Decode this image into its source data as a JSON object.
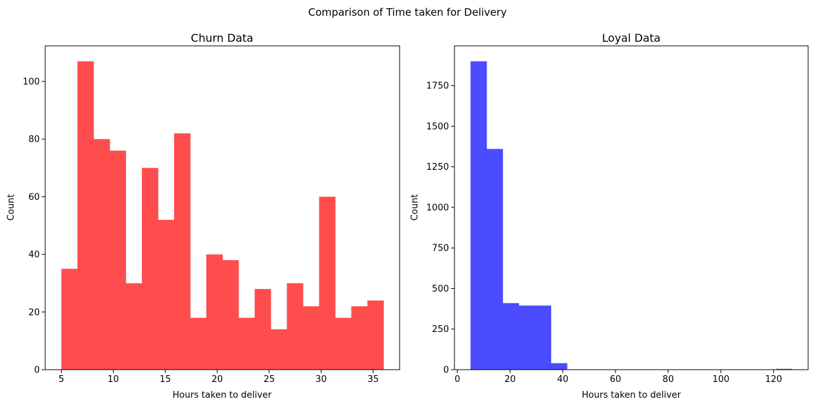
{
  "figure": {
    "title": "Comparison of Time taken for Delivery"
  },
  "chart_data": [
    {
      "type": "bar",
      "title": "Churn Data",
      "xlabel": "Hours taken to deliver",
      "ylabel": "Count",
      "color": "#ff4d4d",
      "xlim": [
        3.45,
        37.55
      ],
      "ylim": [
        0,
        112.35
      ],
      "xticks": [
        5,
        10,
        15,
        20,
        25,
        30,
        35
      ],
      "yticks": [
        0,
        20,
        40,
        60,
        80,
        100
      ],
      "grid": false,
      "bin_edges": [
        5,
        6.55,
        8.1,
        9.65,
        11.2,
        12.75,
        14.3,
        15.85,
        17.4,
        18.95,
        20.5,
        22.05,
        23.6,
        25.15,
        26.7,
        28.25,
        29.8,
        31.35,
        32.9,
        34.45,
        36
      ],
      "values": [
        35,
        107,
        80,
        76,
        30,
        70,
        52,
        82,
        18,
        40,
        38,
        18,
        28,
        14,
        30,
        22,
        60,
        18,
        22,
        24
      ]
    },
    {
      "type": "bar",
      "title": "Loyal Data",
      "xlabel": "Hours taken to deliver",
      "ylabel": "Count",
      "color": "#4b4bff",
      "xlim": [
        -1.1,
        133.1
      ],
      "ylim": [
        0,
        1995
      ],
      "xticks": [
        0,
        20,
        40,
        60,
        80,
        100,
        120
      ],
      "yticks": [
        0,
        250,
        500,
        750,
        1000,
        1250,
        1500,
        1750
      ],
      "grid": false,
      "bin_edges": [
        5,
        11.1,
        17.2,
        23.3,
        29.4,
        35.5,
        41.6,
        47.7,
        53.8,
        59.9,
        66,
        72.1,
        78.2,
        84.3,
        90.4,
        96.5,
        102.6,
        108.7,
        114.8,
        120.9,
        127
      ],
      "values": [
        1900,
        1360,
        410,
        395,
        395,
        40,
        0,
        0,
        0,
        0,
        0,
        0,
        0,
        0,
        0,
        0,
        0,
        0,
        0,
        5
      ]
    }
  ]
}
